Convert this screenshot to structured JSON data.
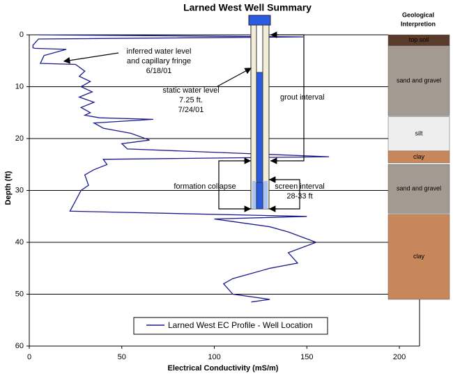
{
  "chart_data": {
    "type": "line",
    "title": "Larned West Well Summary",
    "x_label": "Electrical Conductivity (mS/m)",
    "y_label": "Depth (ft)",
    "xlim": [
      0,
      210
    ],
    "xticks": [
      0,
      50,
      100,
      150,
      200
    ],
    "ylim": [
      0,
      60
    ],
    "yticks": [
      0,
      10,
      20,
      30,
      40,
      50,
      60
    ],
    "y_inverted": true,
    "grid": true,
    "series": [
      {
        "name": "Larned West EC Profile - Well Location",
        "color": "#1a1a8c",
        "x": [
          5,
          148,
          5,
          2,
          2,
          3,
          20,
          8,
          6,
          25,
          30,
          27,
          33,
          28,
          34,
          27,
          35,
          28,
          33,
          30,
          38,
          67,
          35,
          40,
          55,
          65,
          50,
          53,
          162,
          40,
          42,
          35,
          30,
          32,
          28,
          25,
          22,
          150,
          100,
          110,
          130,
          140,
          155,
          140,
          145,
          130,
          120,
          110,
          105,
          110,
          130,
          120
        ],
        "y": [
          0,
          0.4,
          0.8,
          2,
          2.5,
          2.6,
          2.8,
          4,
          5.5,
          5.7,
          7,
          8,
          9,
          10,
          11,
          12,
          13,
          14,
          15,
          15.5,
          16,
          16.3,
          17,
          18,
          19,
          20.3,
          21,
          22,
          23.5,
          24,
          25,
          26,
          27,
          29,
          30,
          32,
          34,
          35,
          35.5,
          36,
          37,
          38,
          40,
          42,
          44,
          45,
          46,
          47,
          48,
          50,
          51,
          51.5
        ]
      }
    ],
    "legend": "bottom",
    "geology_title": [
      "Geological",
      "Interpretion"
    ],
    "geology": [
      {
        "label": "top soil",
        "top": 0,
        "bottom": 2.1,
        "color": "#5a3a28"
      },
      {
        "label": "sand and gravel",
        "top": 2.1,
        "bottom": 15.6,
        "color": "#a39a92"
      },
      {
        "label": "silt",
        "top": 15.8,
        "bottom": 22.4,
        "color": "#eeeeee"
      },
      {
        "label": "clay",
        "top": 22.4,
        "bottom": 24.7,
        "color": "#c8875a"
      },
      {
        "label": "sand and gravel",
        "top": 25,
        "bottom": 34.4,
        "color": "#a39a92"
      },
      {
        "label": "clay",
        "top": 34.6,
        "bottom": 51,
        "color": "#c8875a"
      }
    ],
    "annotations": [
      [
        "inferred water level",
        "and capillary fringe",
        "6/18/01"
      ],
      [
        "static water level",
        "7.25 ft.",
        "7/24/01"
      ],
      [
        "grout interval"
      ],
      [
        "formation collapse"
      ],
      [
        "screen interval",
        "28-33 ft"
      ]
    ]
  }
}
